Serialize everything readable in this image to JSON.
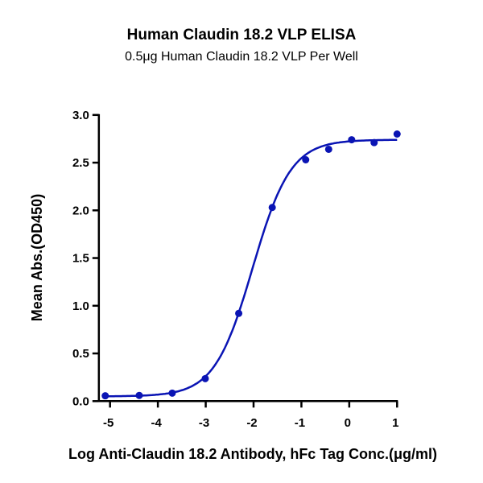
{
  "chart_data": {
    "type": "scatter",
    "title": "Human Claudin 18.2 VLP ELISA",
    "subtitle": "0.5μg Human Claudin 18.2 VLP Per Well",
    "xlabel": "Log Anti-Claudin 18.2 Antibody, hFc Tag Conc.(μg/ml)",
    "ylabel": "Mean Abs.(OD450)",
    "xlim": [
      -5.2,
      1.0
    ],
    "ylim": [
      0,
      3.0
    ],
    "xticks": [
      -5,
      -4,
      -3,
      -2,
      -1,
      0,
      1
    ],
    "yticks": [
      "0.0",
      "0.5",
      "1.0",
      "1.5",
      "2.0",
      "2.5",
      "3.0"
    ],
    "grid": false,
    "color": "#0a14b4",
    "points": {
      "x": [
        -5.1,
        -4.39,
        -3.7,
        -3.01,
        -2.31,
        -1.61,
        -0.91,
        -0.43,
        0.05,
        0.52,
        1.0
      ],
      "y": [
        0.056,
        0.06,
        0.084,
        0.236,
        0.92,
        2.03,
        2.53,
        2.64,
        2.74,
        2.71,
        2.8
      ]
    },
    "fit": {
      "model": "4PL",
      "bottom": 0.05,
      "top": 2.74,
      "logEC50": -2.02,
      "hill": 1.09
    }
  }
}
